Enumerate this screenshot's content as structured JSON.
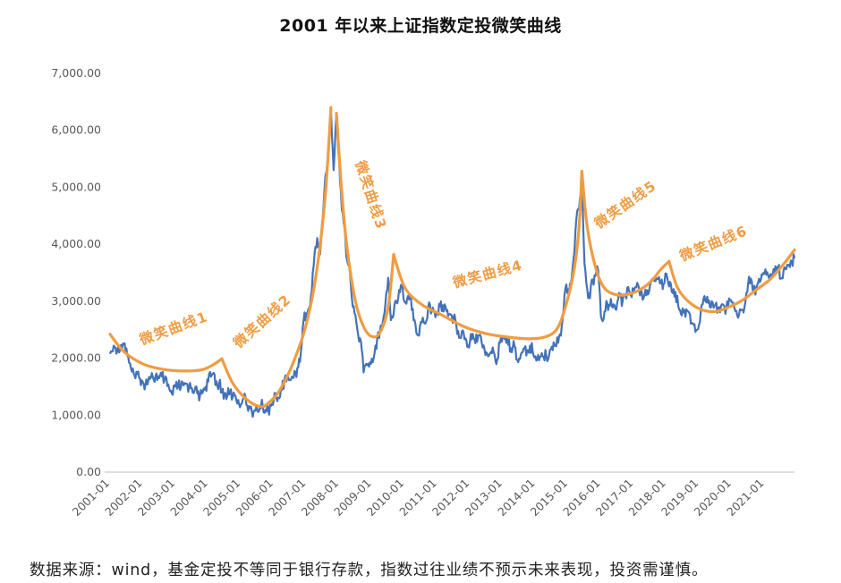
{
  "title": "2001 年以来上证指数定投微笑曲线",
  "footnote": "数据来源：wind，基金定投不等同于银行存款，指数过往业绩不预示未来表现，投资需谨慎。",
  "colors": {
    "index_line": "#4472b8",
    "smile_curve": "#F09C42",
    "axis": "#c9c9c9",
    "tick_text": "#595959",
    "title_text": "#111111"
  },
  "chart_data": {
    "type": "line",
    "title": "2001 年以来上证指数定投微笑曲线",
    "xlabel": "",
    "ylabel": "",
    "ylim": [
      0,
      7000
    ],
    "grid": false,
    "legend": "none",
    "x_tick_labels": [
      "2001-01",
      "2002-01",
      "2003-01",
      "2004-01",
      "2005-01",
      "2006-01",
      "2007-01",
      "2008-01",
      "2009-01",
      "2010-01",
      "2011-01",
      "2012-01",
      "2013-01",
      "2014-01",
      "2015-01",
      "2016-01",
      "2017-01",
      "2018-01",
      "2019-01",
      "2020-01",
      "2021-01"
    ],
    "y_ticks": [
      0,
      1000,
      2000,
      3000,
      4000,
      5000,
      6000,
      7000
    ],
    "y_tick_labels": [
      "0.00",
      "1,000.00",
      "2,000.00",
      "3,000.00",
      "4,000.00",
      "5,000.00",
      "6,000.00",
      "7,000.00"
    ],
    "series": [
      {
        "name": "上证指数",
        "type": "line",
        "color": "#4472b8",
        "x_start": "2001-01",
        "x_step": "month",
        "monthly_values": [
          2077,
          2120,
          2180,
          2211,
          2230,
          2245,
          2170,
          1920,
          1765,
          1690,
          1720,
          1646,
          1580,
          1540,
          1603,
          1660,
          1620,
          1732,
          1650,
          1680,
          1620,
          1510,
          1420,
          1358,
          1499,
          1512,
          1487,
          1522,
          1557,
          1486,
          1476,
          1432,
          1381,
          1348,
          1397,
          1497,
          1590,
          1676,
          1742,
          1595,
          1555,
          1400,
          1387,
          1342,
          1397,
          1320,
          1340,
          1266,
          1191,
          1306,
          1181,
          1159,
          1061,
          1081,
          1083,
          1163,
          1155,
          1092,
          1099,
          1161,
          1258,
          1299,
          1298,
          1441,
          1641,
          1672,
          1613,
          1658,
          1752,
          1837,
          2099,
          2675,
          2786,
          2881,
          3184,
          3841,
          4109,
          3821,
          4471,
          5218,
          5500,
          6400,
          5300,
          6300,
          5500,
          4600,
          4300,
          3700,
          3500,
          2900,
          2750,
          2400,
          2300,
          1750,
          1900,
          1850,
          1991,
          2083,
          2373,
          2478,
          2632,
          2959,
          3412,
          2668,
          2779,
          2995,
          3195,
          3277,
          2989,
          3052,
          3109,
          2871,
          2592,
          2398,
          2638,
          2639,
          2656,
          2979,
          2820,
          2808,
          2790,
          2905,
          2928,
          2911,
          2743,
          2762,
          2701,
          2567,
          2359,
          2468,
          2333,
          2199,
          2293,
          2428,
          2262,
          2396,
          2372,
          2225,
          2103,
          2047,
          2086,
          2068,
          1980,
          2269,
          2385,
          2365,
          2237,
          2177,
          2301,
          1979,
          1994,
          2098,
          2175,
          2141,
          2221,
          2116,
          2033,
          2056,
          2033,
          2026,
          2039,
          2048,
          2202,
          2217,
          2364,
          2420,
          2683,
          3235,
          3210,
          3310,
          3748,
          4442,
          4612,
          5166,
          3664,
          3206,
          3053,
          3383,
          3445,
          3539,
          2738,
          2688,
          3004,
          2938,
          2917,
          2930,
          2979,
          3085,
          3005,
          3100,
          3250,
          3104,
          3159,
          3242,
          3223,
          3155,
          3117,
          3192,
          3273,
          3361,
          3349,
          3393,
          3317,
          3307,
          3481,
          3259,
          3169,
          3082,
          3095,
          2847,
          2876,
          2725,
          2821,
          2603,
          2588,
          2494,
          2585,
          2941,
          3091,
          3078,
          2899,
          2979,
          2933,
          2886,
          2905,
          2929,
          2872,
          3050,
          2977,
          2880,
          2750,
          2860,
          2852,
          2985,
          3310,
          3396,
          3218,
          3225,
          3392,
          3473,
          3483,
          3509,
          3442,
          3447,
          3615,
          3591,
          3397,
          3544,
          3568,
          3640,
          3700,
          3750
        ]
      }
    ],
    "smile_curves": [
      {
        "name": "微笑曲线1",
        "points": [
          [
            0,
            2420
          ],
          [
            5,
            2120
          ],
          [
            12,
            1900
          ],
          [
            20,
            1800
          ],
          [
            28,
            1775
          ],
          [
            34,
            1800
          ],
          [
            38,
            1890
          ],
          [
            41,
            1990
          ]
        ]
      },
      {
        "name": "微笑曲线2",
        "points": [
          [
            41,
            1990
          ],
          [
            45,
            1560
          ],
          [
            50,
            1280
          ],
          [
            55,
            1150
          ],
          [
            58,
            1210
          ],
          [
            62,
            1420
          ],
          [
            67,
            1900
          ],
          [
            72,
            2600
          ],
          [
            76,
            3600
          ],
          [
            79,
            4900
          ],
          [
            81,
            6400
          ]
        ]
      },
      {
        "name": "微笑曲线3",
        "points": [
          [
            83,
            6300
          ],
          [
            85,
            4900
          ],
          [
            87,
            3900
          ],
          [
            90,
            3000
          ],
          [
            93,
            2550
          ],
          [
            96,
            2380
          ],
          [
            99,
            2450
          ],
          [
            102,
            2900
          ],
          [
            104,
            3820
          ]
        ]
      },
      {
        "name": "微笑曲线4",
        "points": [
          [
            104,
            3820
          ],
          [
            108,
            3250
          ],
          [
            114,
            2950
          ],
          [
            122,
            2750
          ],
          [
            130,
            2550
          ],
          [
            138,
            2430
          ],
          [
            146,
            2370
          ],
          [
            154,
            2340
          ],
          [
            160,
            2380
          ],
          [
            164,
            2520
          ],
          [
            167,
            2900
          ],
          [
            170,
            3500
          ],
          [
            172,
            4300
          ],
          [
            173,
            5280
          ]
        ]
      },
      {
        "name": "微笑曲线5",
        "points": [
          [
            173,
            5280
          ],
          [
            175,
            4300
          ],
          [
            178,
            3600
          ],
          [
            181,
            3250
          ],
          [
            185,
            3120
          ],
          [
            190,
            3120
          ],
          [
            195,
            3220
          ],
          [
            199,
            3380
          ],
          [
            202,
            3560
          ],
          [
            205,
            3700
          ]
        ]
      },
      {
        "name": "微笑曲线6",
        "points": [
          [
            205,
            3700
          ],
          [
            208,
            3250
          ],
          [
            212,
            3000
          ],
          [
            217,
            2850
          ],
          [
            222,
            2820
          ],
          [
            227,
            2900
          ],
          [
            232,
            3020
          ],
          [
            237,
            3200
          ],
          [
            242,
            3380
          ],
          [
            247,
            3650
          ],
          [
            251,
            3900
          ]
        ]
      }
    ],
    "annotations": [
      {
        "text": "微笑曲线1",
        "x_month": 24,
        "value": 2450,
        "rotation": -20
      },
      {
        "text": "微笑曲线2",
        "x_month": 57,
        "value": 2590,
        "rotation": -42
      },
      {
        "text": "微笑曲线3",
        "x_month": 94,
        "value": 4835,
        "rotation": 72
      },
      {
        "text": "微笑曲线4",
        "x_month": 139,
        "value": 3400,
        "rotation": -15
      },
      {
        "text": "微笑曲线5",
        "x_month": 190,
        "value": 4630,
        "rotation": -35
      },
      {
        "text": "微笑曲线6",
        "x_month": 222,
        "value": 3940,
        "rotation": -22
      }
    ]
  }
}
